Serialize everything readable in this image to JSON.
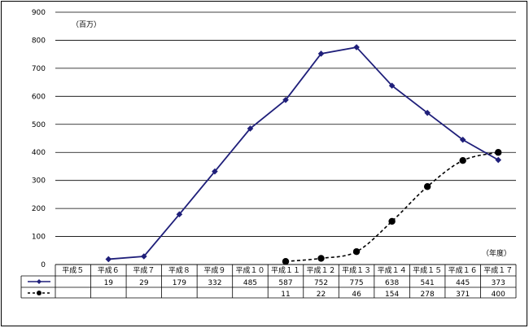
{
  "chart_data": {
    "type": "line",
    "unit_label": "（百万）",
    "xlabel": "（年度）",
    "ylim": [
      0,
      900
    ],
    "yticks": [
      0,
      100,
      200,
      300,
      400,
      500,
      600,
      700,
      800,
      900
    ],
    "categories": [
      "平成５",
      "平成６",
      "平成７",
      "平成８",
      "平成９",
      "平成１０",
      "平成１１",
      "平成１２",
      "平成１３",
      "平成１４",
      "平成１５",
      "平成１６",
      "平成１７"
    ],
    "series": [
      {
        "style": "solid-diamond",
        "color": "#1f1f7a",
        "values": [
          null,
          19,
          29,
          179,
          332,
          485,
          587,
          752,
          775,
          638,
          541,
          445,
          373
        ]
      },
      {
        "style": "dashed-circle",
        "color": "#000000",
        "values": [
          null,
          null,
          null,
          null,
          null,
          null,
          11,
          22,
          46,
          154,
          278,
          371,
          400
        ]
      }
    ],
    "grid": true,
    "legend": "data-table-left"
  }
}
